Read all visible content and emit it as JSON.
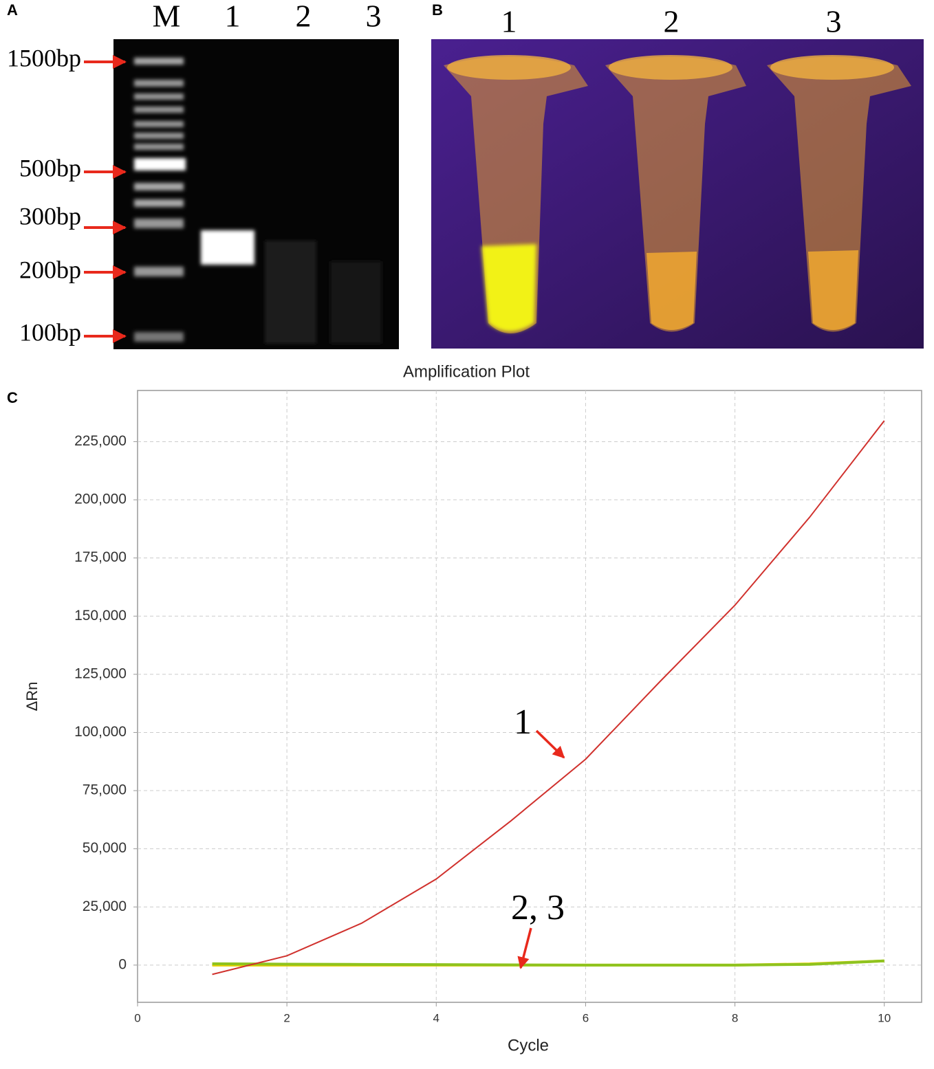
{
  "panel_a": {
    "label": "A",
    "lanes": [
      "M",
      "1",
      "2",
      "3"
    ],
    "markers": [
      "1500bp",
      "500bp",
      "300bp",
      "200bp",
      "100bp"
    ]
  },
  "panel_b": {
    "label": "B",
    "tubes": [
      "1",
      "2",
      "3"
    ]
  },
  "chart_data": {
    "type": "line",
    "panel_label": "C",
    "title": "Amplification Plot",
    "xlabel": "Cycle",
    "ylabel": "ΔRn",
    "x": [
      1,
      2,
      3,
      4,
      5,
      6,
      7,
      8,
      9,
      10
    ],
    "series": [
      {
        "color": "#d0312d",
        "values": [
          -4000,
          4000,
          18000,
          37000,
          62000,
          88500,
          122000,
          154700,
          192500,
          234000
        ]
      },
      {
        "color": "#8fc31f",
        "values": [
          600,
          400,
          300,
          200,
          100,
          0,
          0,
          0,
          300,
          1800
        ]
      },
      {
        "color": "#e6d000",
        "values": [
          0,
          0,
          0,
          0,
          0,
          0,
          0,
          0,
          500,
          1800
        ]
      }
    ],
    "annotations": [
      "1",
      "2, 3"
    ],
    "xlim": [
      0,
      10.5
    ],
    "xticks": [
      0,
      2,
      4,
      6,
      8,
      10
    ],
    "ylim": [
      -16000,
      247000
    ],
    "yticks": [
      0,
      {
        "value": 25000,
        "label": "25,000"
      },
      {
        "value": 50000,
        "label": "50,000"
      },
      {
        "value": 75000,
        "label": "75,000"
      },
      {
        "value": 100000,
        "label": "100,000"
      },
      {
        "value": 125000,
        "label": "125,000"
      },
      {
        "value": 150000,
        "label": "150,000"
      },
      {
        "value": 175000,
        "label": "175,000"
      },
      {
        "value": 200000,
        "label": "200,000"
      },
      {
        "value": 225000,
        "label": "225,000"
      }
    ],
    "grid": true
  }
}
